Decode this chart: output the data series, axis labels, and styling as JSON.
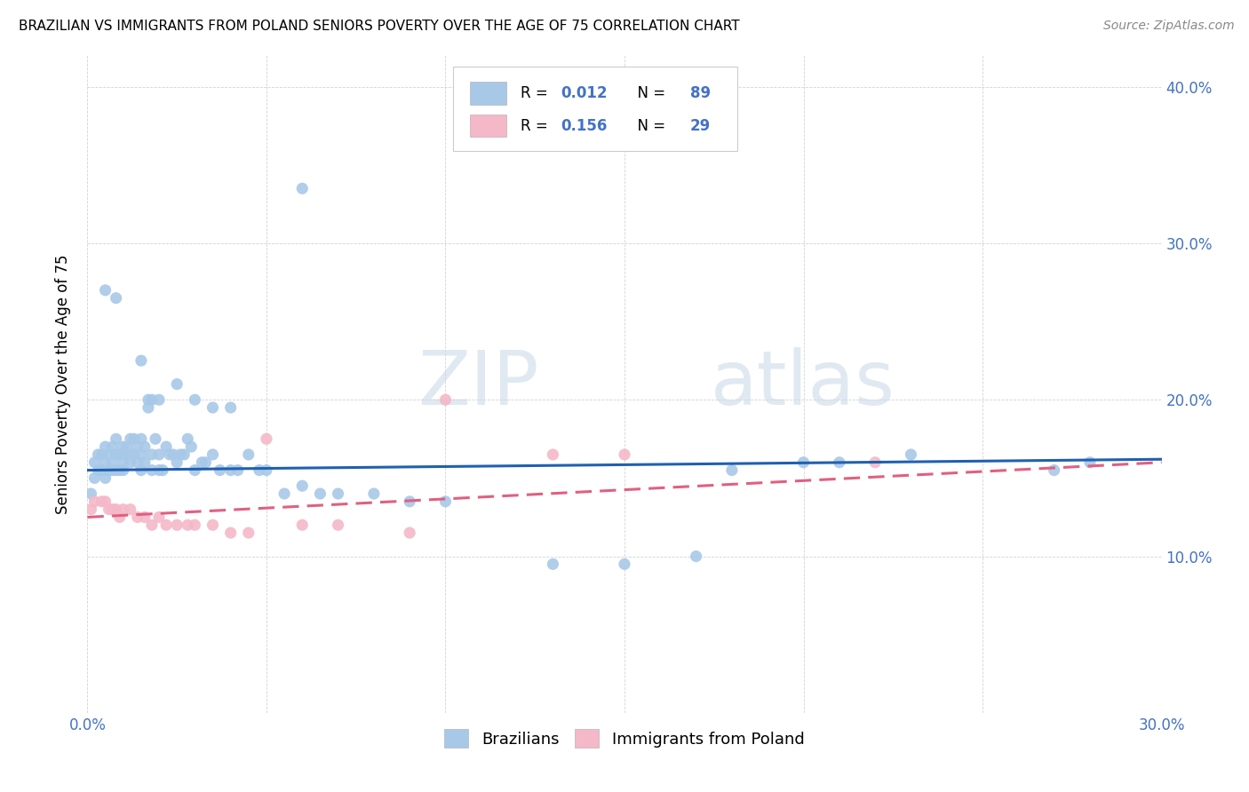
{
  "title": "BRAZILIAN VS IMMIGRANTS FROM POLAND SENIORS POVERTY OVER THE AGE OF 75 CORRELATION CHART",
  "source": "Source: ZipAtlas.com",
  "ylabel": "Seniors Poverty Over the Age of 75",
  "xlim": [
    0.0,
    0.3
  ],
  "ylim": [
    0.0,
    0.42
  ],
  "brazil_color": "#a8c8e8",
  "poland_color": "#f4b8c8",
  "brazil_line_color": "#2060b0",
  "poland_line_color": "#e06080",
  "brazil_r": 0.012,
  "brazil_n": 89,
  "poland_r": 0.156,
  "poland_n": 29,
  "brazil_x": [
    0.001,
    0.002,
    0.002,
    0.003,
    0.003,
    0.004,
    0.004,
    0.005,
    0.005,
    0.005,
    0.006,
    0.006,
    0.007,
    0.007,
    0.007,
    0.008,
    0.008,
    0.008,
    0.009,
    0.009,
    0.01,
    0.01,
    0.01,
    0.011,
    0.011,
    0.012,
    0.012,
    0.012,
    0.013,
    0.013,
    0.014,
    0.014,
    0.015,
    0.015,
    0.015,
    0.016,
    0.016,
    0.017,
    0.017,
    0.018,
    0.018,
    0.019,
    0.02,
    0.02,
    0.021,
    0.022,
    0.023,
    0.024,
    0.025,
    0.026,
    0.027,
    0.028,
    0.029,
    0.03,
    0.032,
    0.033,
    0.035,
    0.037,
    0.04,
    0.042,
    0.045,
    0.048,
    0.05,
    0.055,
    0.06,
    0.065,
    0.07,
    0.08,
    0.09,
    0.1,
    0.005,
    0.008,
    0.015,
    0.018,
    0.02,
    0.025,
    0.03,
    0.035,
    0.04,
    0.06,
    0.13,
    0.15,
    0.17,
    0.18,
    0.2,
    0.21,
    0.23,
    0.27,
    0.28
  ],
  "brazil_y": [
    0.14,
    0.15,
    0.16,
    0.155,
    0.165,
    0.155,
    0.165,
    0.15,
    0.16,
    0.17,
    0.155,
    0.165,
    0.16,
    0.17,
    0.155,
    0.155,
    0.165,
    0.175,
    0.155,
    0.165,
    0.16,
    0.17,
    0.155,
    0.165,
    0.17,
    0.16,
    0.165,
    0.175,
    0.165,
    0.175,
    0.16,
    0.17,
    0.155,
    0.165,
    0.175,
    0.16,
    0.17,
    0.195,
    0.2,
    0.155,
    0.165,
    0.175,
    0.155,
    0.165,
    0.155,
    0.17,
    0.165,
    0.165,
    0.16,
    0.165,
    0.165,
    0.175,
    0.17,
    0.155,
    0.16,
    0.16,
    0.165,
    0.155,
    0.155,
    0.155,
    0.165,
    0.155,
    0.155,
    0.14,
    0.145,
    0.14,
    0.14,
    0.14,
    0.135,
    0.135,
    0.27,
    0.265,
    0.225,
    0.2,
    0.2,
    0.21,
    0.2,
    0.195,
    0.195,
    0.335,
    0.095,
    0.095,
    0.1,
    0.155,
    0.16,
    0.16,
    0.165,
    0.155,
    0.16
  ],
  "poland_x": [
    0.001,
    0.002,
    0.004,
    0.005,
    0.006,
    0.007,
    0.008,
    0.009,
    0.01,
    0.012,
    0.014,
    0.016,
    0.018,
    0.02,
    0.022,
    0.025,
    0.028,
    0.03,
    0.035,
    0.04,
    0.045,
    0.05,
    0.06,
    0.07,
    0.09,
    0.1,
    0.13,
    0.15,
    0.22
  ],
  "poland_y": [
    0.13,
    0.135,
    0.135,
    0.135,
    0.13,
    0.13,
    0.13,
    0.125,
    0.13,
    0.13,
    0.125,
    0.125,
    0.12,
    0.125,
    0.12,
    0.12,
    0.12,
    0.12,
    0.12,
    0.115,
    0.115,
    0.175,
    0.12,
    0.12,
    0.115,
    0.2,
    0.165,
    0.165,
    0.16
  ]
}
